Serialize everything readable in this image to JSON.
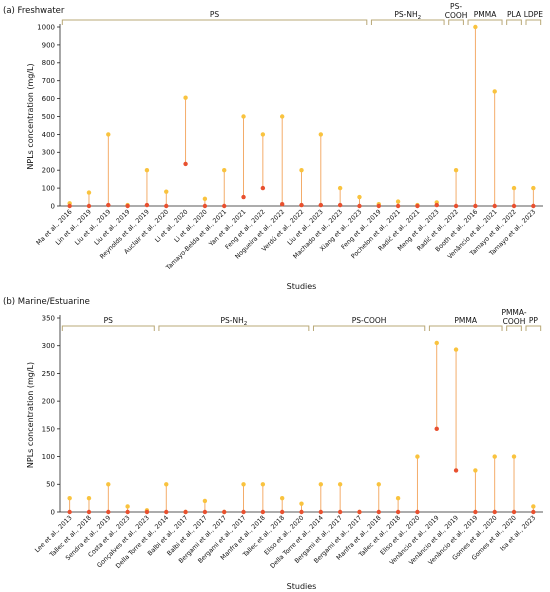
{
  "chart_data": [
    {
      "type": "scatter",
      "title": "(a) Freshwater",
      "xlabel": "Studies",
      "ylabel": "NPLs concentration (mg/L)",
      "ylim": [
        0,
        1000
      ],
      "yticks": [
        0,
        100,
        200,
        300,
        400,
        500,
        600,
        700,
        800,
        900,
        1000
      ],
      "series": [
        {
          "name": "min",
          "color": "#e8502f"
        },
        {
          "name": "max",
          "color": "#f9c33e"
        }
      ],
      "points": [
        {
          "label": "Ma et al., 2016",
          "min": 0,
          "max": 15
        },
        {
          "label": "Lin et al., 2019",
          "min": 0,
          "max": 75
        },
        {
          "label": "Liu et al., 2019",
          "min": 5,
          "max": 400
        },
        {
          "label": "Liu et al., 2019",
          "min": 0,
          "max": 5
        },
        {
          "label": "Reynolds et al., 2019",
          "min": 5,
          "max": 200
        },
        {
          "label": "Auclair et al., 2020",
          "min": 0,
          "max": 80
        },
        {
          "label": "Li et al., 2020",
          "min": 235,
          "max": 605
        },
        {
          "label": "Li et al., 2020",
          "min": 0,
          "max": 40
        },
        {
          "label": "Tamayo-Belda et al., 2021",
          "min": 0,
          "max": 200
        },
        {
          "label": "Yan et al., 2021",
          "min": 50,
          "max": 500
        },
        {
          "label": "Feng et al., 2022",
          "min": 100,
          "max": 400
        },
        {
          "label": "Nogueira et al., 2022",
          "min": 10,
          "max": 500
        },
        {
          "label": "Verdú et al., 2022",
          "min": 5,
          "max": 200
        },
        {
          "label": "Liu et al., 2023",
          "min": 5,
          "max": 400
        },
        {
          "label": "Machado et al., 2023",
          "min": 5,
          "max": 100
        },
        {
          "label": "Xiang et al., 2023",
          "min": 0,
          "max": 50
        },
        {
          "label": "Feng et al., 2019",
          "min": 0,
          "max": 10
        },
        {
          "label": "Pochelon et al., 2021",
          "min": 0,
          "max": 25
        },
        {
          "label": "Radić et al., 2021",
          "min": 0,
          "max": 5
        },
        {
          "label": "Meng et al., 2023",
          "min": 5,
          "max": 20
        },
        {
          "label": "Radić et al., 2022",
          "min": 0,
          "max": 200
        },
        {
          "label": "Booth et al., 2016",
          "min": 0,
          "max": 1000
        },
        {
          "label": "Venâncio et al., 2021",
          "min": 0,
          "max": 640
        },
        {
          "label": "Tamayo et al., 2022",
          "min": 0,
          "max": 100
        },
        {
          "label": "Tamayo et al., 2023",
          "min": 0,
          "max": 100
        }
      ],
      "groups": [
        {
          "label": "PS",
          "from": 0,
          "to": 15
        },
        {
          "label": "PS-NH",
          "sub": "2",
          "from": 16,
          "to": 19
        },
        {
          "label": "PS-COOH",
          "from": 20,
          "to": 20
        },
        {
          "label": "PMMA",
          "from": 21,
          "to": 22
        },
        {
          "label": "PLA",
          "from": 23,
          "to": 23
        },
        {
          "label": "LDPE",
          "from": 24,
          "to": 24
        }
      ]
    },
    {
      "type": "scatter",
      "title": "(b) Marine/Estuarine",
      "xlabel": "Studies",
      "ylabel": "NPLs concentration (mg/L)",
      "ylim": [
        0,
        350
      ],
      "yticks": [
        0,
        50,
        100,
        150,
        200,
        250,
        300,
        350
      ],
      "series": [
        {
          "name": "min",
          "color": "#e8502f"
        },
        {
          "name": "max",
          "color": "#f9c33e"
        }
      ],
      "points": [
        {
          "label": "Lee et al., 2013",
          "min": 0,
          "max": 25
        },
        {
          "label": "Tallec et al., 2018",
          "min": 0,
          "max": 25
        },
        {
          "label": "Sendra et al., 2019",
          "min": 0,
          "max": 50
        },
        {
          "label": "Costa et al., 2023",
          "min": 0,
          "max": 10
        },
        {
          "label": "Gonçalves et al., 2023",
          "min": 0,
          "max": 3
        },
        {
          "label": "Della Torre et al., 2014",
          "min": 0,
          "max": 50
        },
        {
          "label": "Balbi et al., 2017",
          "min": 0,
          "max": 0
        },
        {
          "label": "Balbi et al., 2017",
          "min": 0,
          "max": 20
        },
        {
          "label": "Bergami et al., 2017",
          "min": 0,
          "max": 0
        },
        {
          "label": "Bergami et al., 2017",
          "min": 0,
          "max": 50
        },
        {
          "label": "Manfra et al., 2018",
          "min": 0,
          "max": 50
        },
        {
          "label": "Tallec et al., 2018",
          "min": 0,
          "max": 25
        },
        {
          "label": "Eliso et al., 2020",
          "min": 0,
          "max": 15
        },
        {
          "label": "Della Torre et al., 2014",
          "min": 0,
          "max": 50
        },
        {
          "label": "Bergami et al., 2017",
          "min": 0,
          "max": 50
        },
        {
          "label": "Bergami et al., 2017",
          "min": 0,
          "max": 0
        },
        {
          "label": "Manfra et al., 2018",
          "min": 0,
          "max": 50
        },
        {
          "label": "Tallec et al., 2018",
          "min": 0,
          "max": 25
        },
        {
          "label": "Eliso et al., 2020",
          "min": 0,
          "max": 100
        },
        {
          "label": "Venâncio et al., 2019",
          "min": 150,
          "max": 305
        },
        {
          "label": "Venâncio et al., 2019",
          "min": 75,
          "max": 293
        },
        {
          "label": "Venâncio et al., 2019",
          "min": 0,
          "max": 75
        },
        {
          "label": "Gomes et al., 2020",
          "min": 0,
          "max": 100
        },
        {
          "label": "Gomes et al., 2020",
          "min": 0,
          "max": 100
        },
        {
          "label": "Isa et al., 2023",
          "min": 0,
          "max": 10
        }
      ],
      "groups": [
        {
          "label": "PS",
          "from": 0,
          "to": 4
        },
        {
          "label": "PS-NH",
          "sub": "2",
          "from": 5,
          "to": 12
        },
        {
          "label": "PS-COOH",
          "from": 13,
          "to": 18
        },
        {
          "label": "PMMA",
          "from": 19,
          "to": 22
        },
        {
          "label": "PMMA-COOH",
          "from": 23,
          "to": 23
        },
        {
          "label": "PP",
          "from": 24,
          "to": 24
        }
      ]
    }
  ]
}
